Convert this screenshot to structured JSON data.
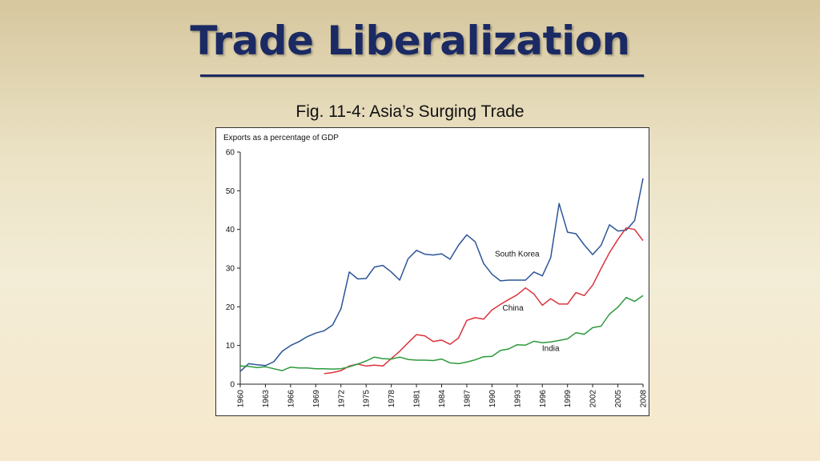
{
  "slide": {
    "title": "Trade Liberalization",
    "caption": "Fig. 11-4: Asia’s Surging Trade"
  },
  "chart_data": {
    "type": "line",
    "title": "",
    "ylabel": "Exports as a percentage of GDP",
    "xlabel": "",
    "ylim": [
      0,
      60
    ],
    "xlim": [
      1960,
      2008
    ],
    "yticks": [
      0,
      10,
      20,
      30,
      40,
      50,
      60
    ],
    "xticks": [
      1960,
      1963,
      1966,
      1969,
      1972,
      1975,
      1978,
      1981,
      1984,
      1987,
      1990,
      1993,
      1996,
      1999,
      2002,
      2005,
      2008
    ],
    "grid": false,
    "series": [
      {
        "name": "South Korea",
        "color": "#2b5597",
        "label_at": [
          1993,
          33
        ],
        "points": [
          [
            1960,
            3.3
          ],
          [
            1961,
            5.3
          ],
          [
            1962,
            5.0
          ],
          [
            1963,
            4.8
          ],
          [
            1964,
            5.8
          ],
          [
            1965,
            8.5
          ],
          [
            1966,
            10.0
          ],
          [
            1967,
            11.0
          ],
          [
            1968,
            12.3
          ],
          [
            1969,
            13.2
          ],
          [
            1970,
            13.8
          ],
          [
            1971,
            15.3
          ],
          [
            1972,
            19.5
          ],
          [
            1973,
            29.0
          ],
          [
            1974,
            27.2
          ],
          [
            1975,
            27.3
          ],
          [
            1976,
            30.3
          ],
          [
            1977,
            30.7
          ],
          [
            1978,
            29.0
          ],
          [
            1979,
            26.9
          ],
          [
            1980,
            32.4
          ],
          [
            1981,
            34.6
          ],
          [
            1982,
            33.6
          ],
          [
            1983,
            33.4
          ],
          [
            1984,
            33.7
          ],
          [
            1985,
            32.3
          ],
          [
            1986,
            35.9
          ],
          [
            1987,
            38.6
          ],
          [
            1988,
            36.8
          ],
          [
            1989,
            31.2
          ],
          [
            1990,
            28.4
          ],
          [
            1991,
            26.7
          ],
          [
            1992,
            26.9
          ],
          [
            1993,
            26.9
          ],
          [
            1994,
            26.9
          ],
          [
            1995,
            29.0
          ],
          [
            1996,
            28.0
          ],
          [
            1997,
            32.7
          ],
          [
            1998,
            46.7
          ],
          [
            1999,
            39.3
          ],
          [
            2000,
            38.9
          ],
          [
            2001,
            36.0
          ],
          [
            2002,
            33.5
          ],
          [
            2003,
            35.9
          ],
          [
            2004,
            41.2
          ],
          [
            2005,
            39.6
          ],
          [
            2006,
            39.8
          ],
          [
            2007,
            42.3
          ],
          [
            2008,
            53.2
          ]
        ]
      },
      {
        "name": "China",
        "color": "#d9343c",
        "label_at": [
          1992.5,
          19
        ],
        "points": [
          [
            1970,
            2.7
          ],
          [
            1971,
            3.0
          ],
          [
            1972,
            3.5
          ],
          [
            1973,
            4.7
          ],
          [
            1974,
            5.2
          ],
          [
            1975,
            4.7
          ],
          [
            1976,
            4.9
          ],
          [
            1977,
            4.7
          ],
          [
            1978,
            6.6
          ],
          [
            1979,
            8.5
          ],
          [
            1980,
            10.7
          ],
          [
            1981,
            12.8
          ],
          [
            1982,
            12.5
          ],
          [
            1983,
            11.0
          ],
          [
            1984,
            11.4
          ],
          [
            1985,
            10.3
          ],
          [
            1986,
            11.9
          ],
          [
            1987,
            16.5
          ],
          [
            1988,
            17.2
          ],
          [
            1989,
            16.8
          ],
          [
            1990,
            19.2
          ],
          [
            1991,
            20.6
          ],
          [
            1992,
            21.9
          ],
          [
            1993,
            23.1
          ],
          [
            1994,
            24.9
          ],
          [
            1995,
            23.3
          ],
          [
            1996,
            20.4
          ],
          [
            1997,
            22.1
          ],
          [
            1998,
            20.7
          ],
          [
            1999,
            20.7
          ],
          [
            2000,
            23.7
          ],
          [
            2001,
            22.9
          ],
          [
            2002,
            25.6
          ],
          [
            2003,
            29.9
          ],
          [
            2004,
            34.0
          ],
          [
            2005,
            37.4
          ],
          [
            2006,
            40.4
          ],
          [
            2007,
            40.0
          ],
          [
            2008,
            37.1
          ]
        ]
      },
      {
        "name": "India",
        "color": "#2d9a3c",
        "label_at": [
          1997,
          8.6
        ],
        "points": [
          [
            1960,
            4.7
          ],
          [
            1961,
            4.6
          ],
          [
            1962,
            4.3
          ],
          [
            1963,
            4.5
          ],
          [
            1964,
            4.0
          ],
          [
            1965,
            3.5
          ],
          [
            1966,
            4.4
          ],
          [
            1967,
            4.2
          ],
          [
            1968,
            4.2
          ],
          [
            1969,
            4.0
          ],
          [
            1970,
            4.0
          ],
          [
            1971,
            3.9
          ],
          [
            1972,
            4.0
          ],
          [
            1973,
            4.5
          ],
          [
            1974,
            5.2
          ],
          [
            1975,
            6.0
          ],
          [
            1976,
            7.0
          ],
          [
            1977,
            6.6
          ],
          [
            1978,
            6.5
          ],
          [
            1979,
            7.0
          ],
          [
            1980,
            6.4
          ],
          [
            1981,
            6.2
          ],
          [
            1982,
            6.2
          ],
          [
            1983,
            6.1
          ],
          [
            1984,
            6.5
          ],
          [
            1985,
            5.5
          ],
          [
            1986,
            5.3
          ],
          [
            1987,
            5.7
          ],
          [
            1988,
            6.3
          ],
          [
            1989,
            7.1
          ],
          [
            1990,
            7.2
          ],
          [
            1991,
            8.7
          ],
          [
            1992,
            9.1
          ],
          [
            1993,
            10.2
          ],
          [
            1994,
            10.1
          ],
          [
            1995,
            11.1
          ],
          [
            1996,
            10.7
          ],
          [
            1997,
            10.9
          ],
          [
            1998,
            11.3
          ],
          [
            1999,
            11.7
          ],
          [
            2000,
            13.3
          ],
          [
            2001,
            12.9
          ],
          [
            2002,
            14.6
          ],
          [
            2003,
            15.0
          ],
          [
            2004,
            18.1
          ],
          [
            2005,
            19.9
          ],
          [
            2006,
            22.4
          ],
          [
            2007,
            21.4
          ],
          [
            2008,
            22.9
          ]
        ]
      }
    ]
  }
}
